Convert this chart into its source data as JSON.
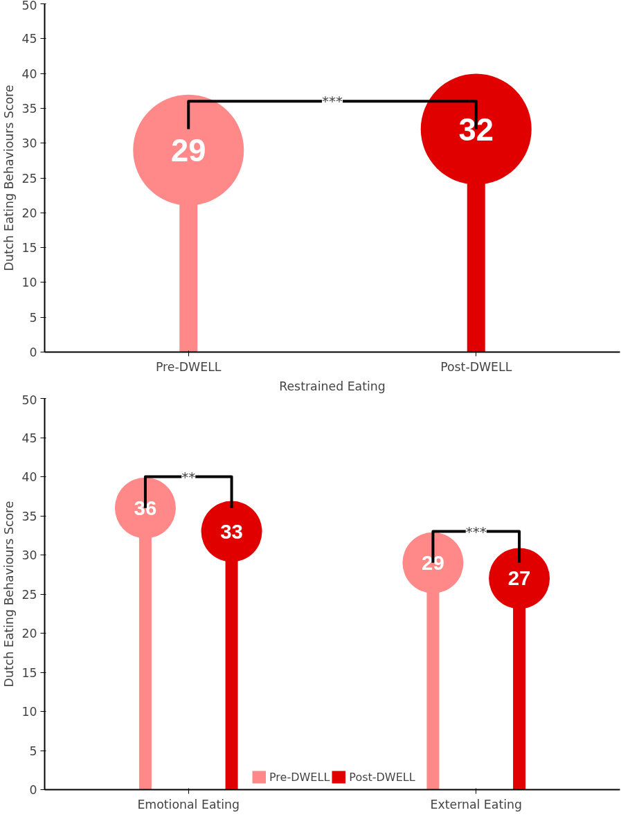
{
  "chart_data": [
    {
      "type": "lollipop",
      "categories": [
        "Pre-DWELL",
        "Post-DWELL"
      ],
      "values": [
        29,
        32
      ],
      "colors": [
        "#ff8888",
        "#e00000"
      ],
      "xlabel": "Restrained Eating",
      "ylabel": "Dutch Eating Behaviours Score",
      "ylim": [
        0,
        50
      ],
      "yticks": [
        0,
        5,
        10,
        15,
        20,
        25,
        30,
        35,
        40,
        45,
        50
      ],
      "grid": false,
      "legend": false,
      "data_labels": true,
      "annotations": [
        "***"
      ]
    },
    {
      "type": "lollipop",
      "categories": [
        "Emotional Eating",
        "External Eating"
      ],
      "series": [
        {
          "name": "Pre-DWELL",
          "color": "#ff8888",
          "values": [
            36,
            29
          ]
        },
        {
          "name": "Post-DWELL",
          "color": "#e00000",
          "values": [
            33,
            27
          ]
        }
      ],
      "ylabel": "Dutch Eating Behaviours Score",
      "ylim": [
        0,
        50
      ],
      "yticks": [
        0,
        5,
        10,
        15,
        20,
        25,
        30,
        35,
        40,
        45,
        50
      ],
      "grid": false,
      "legend": "bottom",
      "data_labels": true,
      "annotations": [
        "**",
        "***"
      ]
    }
  ]
}
